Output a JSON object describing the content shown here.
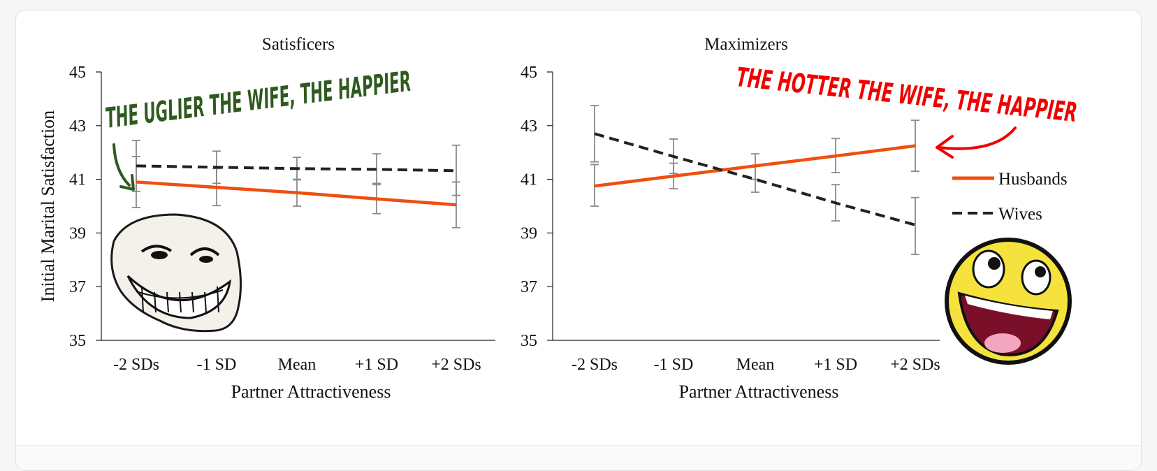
{
  "chart_data": [
    {
      "type": "line",
      "title": "Satisficers",
      "xlabel": "Partner Attractiveness",
      "ylabel": "Initial Marital Satisfaction",
      "categories": [
        "-2 SDs",
        "-1 SD",
        "Mean",
        "+1 SD",
        "+2 SDs"
      ],
      "ylim": [
        35,
        45
      ],
      "yticks": [
        35,
        37,
        39,
        41,
        43,
        45
      ],
      "series": [
        {
          "name": "Husbands",
          "color": "#f04e0e",
          "style": "solid",
          "values": [
            40.9,
            40.7,
            40.5,
            40.27,
            40.05
          ],
          "error_low": [
            39.95,
            40.02,
            40.0,
            39.72,
            39.2
          ],
          "error_high": [
            41.85,
            41.4,
            41.0,
            40.85,
            40.9
          ]
        },
        {
          "name": "Wives",
          "color": "#222222",
          "style": "dashed",
          "values": [
            41.5,
            41.45,
            41.4,
            41.37,
            41.32
          ],
          "error_low": [
            40.55,
            40.85,
            40.98,
            40.8,
            40.4
          ],
          "error_high": [
            42.45,
            42.05,
            41.82,
            41.95,
            42.27
          ]
        }
      ],
      "annotation": "THE UGLIER THE WIFE, THE HAPPIER",
      "image": "troll-face"
    },
    {
      "type": "line",
      "title": "Maximizers",
      "xlabel": "Partner Attractiveness",
      "ylabel": "",
      "categories": [
        "-2 SDs",
        "-1 SD",
        "Mean",
        "+1 SD",
        "+2 SDs"
      ],
      "ylim": [
        35,
        45
      ],
      "yticks": [
        35,
        37,
        39,
        41,
        43,
        45
      ],
      "legend": "right",
      "series": [
        {
          "name": "Husbands",
          "color": "#f04e0e",
          "style": "solid",
          "values": [
            40.75,
            41.12,
            41.5,
            41.87,
            42.25
          ],
          "error_low": [
            40.0,
            40.65,
            41.0,
            41.25,
            41.3
          ],
          "error_high": [
            41.55,
            41.6,
            41.95,
            42.52,
            43.2
          ]
        },
        {
          "name": "Wives",
          "color": "#222222",
          "style": "dashed",
          "values": [
            42.7,
            41.85,
            41.0,
            40.12,
            39.3
          ],
          "error_low": [
            41.65,
            41.22,
            40.52,
            39.45,
            38.2
          ],
          "error_high": [
            43.75,
            42.5,
            41.5,
            40.8,
            40.32
          ]
        }
      ],
      "annotation": "THE HOTTER THE WIFE, THE HAPPIER",
      "image": "awesome-face"
    }
  ]
}
